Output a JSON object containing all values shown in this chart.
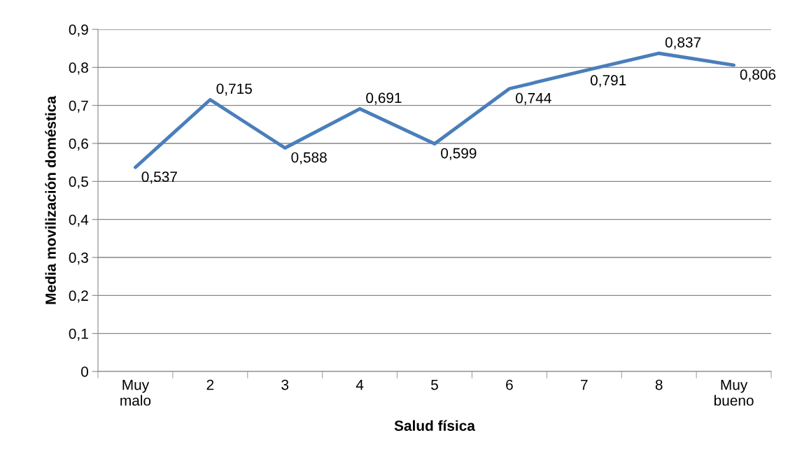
{
  "chart_data": {
    "type": "line",
    "xlabel": "Salud física",
    "ylabel": "Media movilización doméstica",
    "categories": [
      "Muy\nmalo",
      "2",
      "3",
      "4",
      "5",
      "6",
      "7",
      "8",
      "Muy\nbueno"
    ],
    "series": [
      {
        "color": "#4a7ebb",
        "values": [
          0.537,
          0.715,
          0.588,
          0.691,
          0.599,
          0.744,
          0.791,
          0.837,
          0.806
        ],
        "value_labels": [
          "0,537",
          "0,715",
          "0,588",
          "0,691",
          "0,599",
          "0,744",
          "0,791",
          "0,837",
          "0,806"
        ]
      }
    ],
    "ylim": [
      0,
      0.9
    ],
    "yticks": [
      {
        "value": 0,
        "label": "0"
      },
      {
        "value": 0.1,
        "label": "0,1"
      },
      {
        "value": 0.2,
        "label": "0,2"
      },
      {
        "value": 0.3,
        "label": "0,3"
      },
      {
        "value": 0.4,
        "label": "0,4"
      },
      {
        "value": 0.5,
        "label": "0,5"
      },
      {
        "value": 0.6,
        "label": "0,6"
      },
      {
        "value": 0.7,
        "label": "0,7"
      },
      {
        "value": 0.8,
        "label": "0,8"
      },
      {
        "value": 0.9,
        "label": "0,9"
      }
    ],
    "grid": "y",
    "marker": "none",
    "line_style": "solid"
  }
}
